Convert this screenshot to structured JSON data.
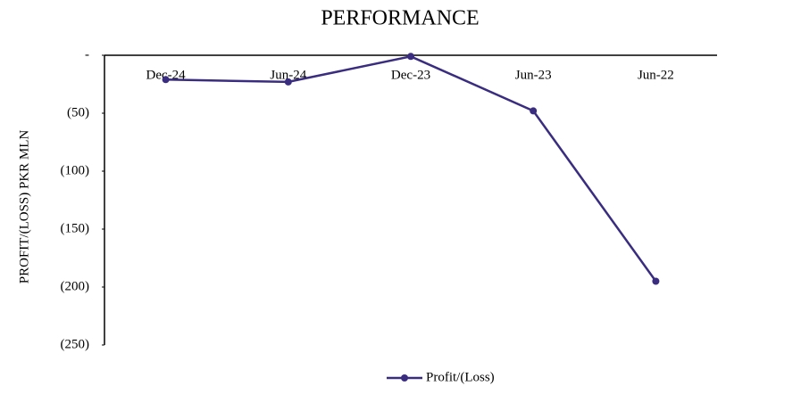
{
  "chart_data": {
    "type": "line",
    "title": "PERFORMANCE",
    "y_label": "PROFIT/(LOSS) PKR MLN",
    "categories": [
      "Dec-24",
      "Jun-24",
      "Dec-23",
      "Jun-23",
      "Jun-22"
    ],
    "series": [
      {
        "name": "Profit/(Loss)",
        "color": "#3a2c7f",
        "values": [
          -21,
          -23,
          -1,
          -48,
          -195
        ]
      }
    ],
    "ylim": [
      -250,
      0
    ],
    "yticks": [
      {
        "value": 0,
        "label": "-"
      },
      {
        "value": -50,
        "label": "(50)"
      },
      {
        "value": -100,
        "label": "(100)"
      },
      {
        "value": -150,
        "label": "(150)"
      },
      {
        "value": -200,
        "label": "(200)"
      },
      {
        "value": -250,
        "label": "(250)"
      }
    ],
    "grid": false,
    "legend": "bottom"
  }
}
